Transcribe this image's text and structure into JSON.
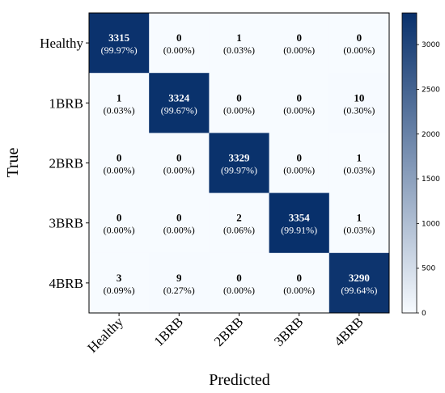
{
  "chart_data": {
    "type": "heatmap",
    "title": "",
    "xlabel": "Predicted",
    "ylabel": "True",
    "x_categories": [
      "Healthy",
      "1BRB",
      "2BRB",
      "3BRB",
      "4BRB"
    ],
    "y_categories": [
      "Healthy",
      "1BRB",
      "2BRB",
      "3BRB",
      "4BRB"
    ],
    "values": [
      [
        3315,
        0,
        1,
        0,
        0
      ],
      [
        1,
        3324,
        0,
        0,
        10
      ],
      [
        0,
        0,
        3329,
        0,
        1
      ],
      [
        0,
        0,
        2,
        3354,
        1
      ],
      [
        3,
        9,
        0,
        0,
        3290
      ]
    ],
    "percent_labels": [
      [
        "(99.97%)",
        "(0.00%)",
        "(0.03%)",
        "(0.00%)",
        "(0.00%)"
      ],
      [
        "(0.03%)",
        "(99.67%)",
        "(0.00%)",
        "(0.00%)",
        "(0.30%)"
      ],
      [
        "(0.00%)",
        "(0.00%)",
        "(99.97%)",
        "(0.00%)",
        "(0.03%)"
      ],
      [
        "(0.00%)",
        "(0.00%)",
        "(0.06%)",
        "(99.91%)",
        "(0.03%)"
      ],
      [
        "(0.09%)",
        "(0.27%)",
        "(0.00%)",
        "(0.00%)",
        "(99.64%)"
      ]
    ],
    "colorbar": {
      "min": 0,
      "max": 3354,
      "ticks": [
        0,
        500,
        1000,
        1500,
        2000,
        2500,
        3000
      ],
      "colors": {
        "low": "#f7fbff",
        "high": "#08306b"
      }
    }
  }
}
